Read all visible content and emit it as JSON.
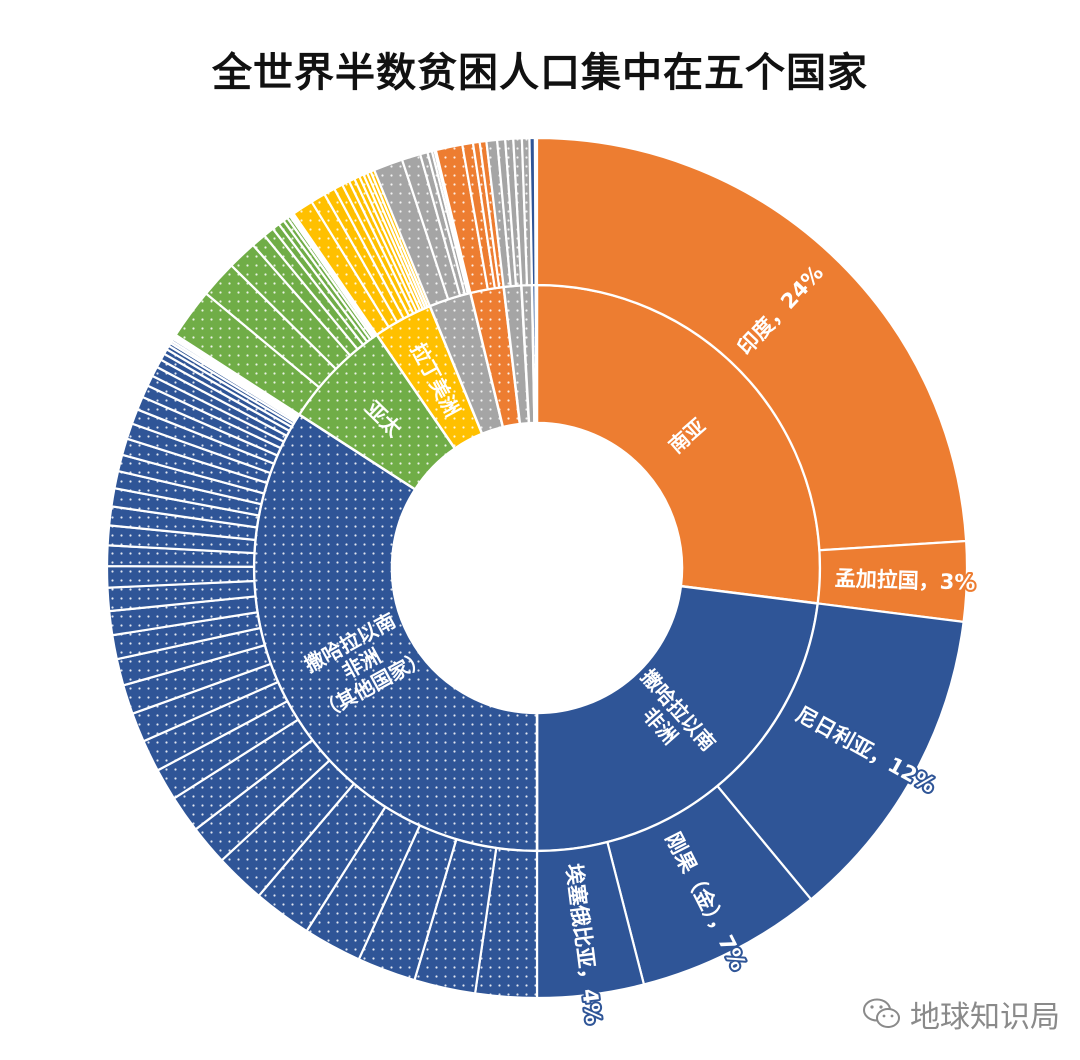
{
  "chart_data": {
    "type": "pie",
    "variant": "sunburst",
    "title": "全世界半数贫困人口集中在五个国家",
    "unit": "%",
    "groups": [
      {
        "name_lines": [
          "南亚"
        ],
        "color": "#ED7D31",
        "pattern": "solid",
        "children": [
          {
            "label": "印度，24%",
            "value": 24
          },
          {
            "label": "孟加拉国，3%",
            "value": 3
          }
        ]
      },
      {
        "name_lines": [
          "撒哈拉以南",
          "非洲"
        ],
        "color": "#2F5597",
        "pattern": "solid",
        "children": [
          {
            "label": "尼日利亚，12%",
            "value": 12
          },
          {
            "label": "刚果（金），7%",
            "value": 7
          },
          {
            "label": "埃塞俄比亚，4%",
            "value": 4
          }
        ]
      },
      {
        "name_lines": [
          "撒哈拉以南",
          "非洲",
          "（其他国家）"
        ],
        "color": "#2F5597",
        "pattern": "dotted",
        "children": [
          {
            "value": 2.3
          },
          {
            "value": 2.3
          },
          {
            "value": 2.2
          },
          {
            "value": 2.2
          },
          {
            "value": 2.2
          },
          {
            "value": 1.9
          },
          {
            "value": 1.5
          },
          {
            "value": 1.4
          },
          {
            "value": 1.2
          },
          {
            "value": 1.2
          },
          {
            "value": 1.1
          },
          {
            "value": 1.1
          },
          {
            "value": 1.0
          },
          {
            "value": 0.9
          },
          {
            "value": 0.9
          },
          {
            "value": 0.87
          },
          {
            "value": 0.8
          },
          {
            "value": 0.77
          },
          {
            "value": 0.74
          },
          {
            "value": 0.71
          },
          {
            "value": 0.68
          },
          {
            "value": 0.65
          },
          {
            "value": 0.62
          },
          {
            "value": 0.62
          },
          {
            "value": 0.59
          },
          {
            "value": 0.56
          },
          {
            "value": 0.5
          },
          {
            "value": 0.46
          },
          {
            "value": 0.4
          },
          {
            "value": 0.37
          },
          {
            "value": 0.31
          },
          {
            "value": 0.25
          },
          {
            "value": 0.19
          },
          {
            "value": 0.15
          },
          {
            "value": 0.12
          },
          {
            "value": 0.09
          },
          {
            "value": 0.09
          },
          {
            "value": 0.06
          },
          {
            "value": 0.06
          },
          {
            "value": 0.06
          }
        ]
      },
      {
        "name_lines": [
          "亚太"
        ],
        "color": "#70AD47",
        "pattern": "dotted",
        "children": [
          {
            "value": 1.9
          },
          {
            "value": 1.4
          },
          {
            "value": 1.1
          },
          {
            "value": 0.55
          },
          {
            "value": 0.4
          },
          {
            "value": 0.28
          },
          {
            "value": 0.22
          },
          {
            "value": 0.17
          },
          {
            "value": 0.12
          },
          {
            "value": 0.08
          },
          {
            "value": 0.08
          }
        ]
      },
      {
        "name_lines": [
          "拉丁美洲"
        ],
        "color": "#FFC000",
        "pattern": "dotted",
        "children": [
          {
            "value": 0.8
          },
          {
            "value": 0.55
          },
          {
            "value": 0.42
          },
          {
            "value": 0.33
          },
          {
            "value": 0.28
          },
          {
            "value": 0.22
          },
          {
            "value": 0.2
          },
          {
            "value": 0.17
          },
          {
            "value": 0.15
          },
          {
            "value": 0.14
          },
          {
            "value": 0.14
          }
        ]
      },
      {
        "color": "#A5A5A5",
        "pattern": "dotted",
        "children": [
          {
            "value": 1.1
          },
          {
            "value": 0.7
          },
          {
            "value": 0.28
          },
          {
            "value": 0.17
          },
          {
            "value": 0.1
          },
          {
            "value": 0.05
          }
        ]
      },
      {
        "color": "#ED7D31",
        "pattern": "dotted",
        "children": [
          {
            "value": 1.0
          },
          {
            "value": 0.4
          },
          {
            "value": 0.25
          },
          {
            "value": 0.25
          }
        ]
      },
      {
        "color": "#A5A5A5",
        "pattern": "dotted",
        "children": [
          {
            "value": 0.4
          },
          {
            "value": 0.3
          },
          {
            "value": 0.3
          }
        ]
      },
      {
        "color": "#A5A5A5",
        "pattern": "dotted",
        "children": [
          {
            "value": 0.32
          },
          {
            "value": 0.28
          }
        ]
      },
      {
        "color": "#2F5597",
        "pattern": "dotted",
        "children": [
          {
            "value": 0.2
          }
        ]
      }
    ]
  },
  "watermark": {
    "text": "地球知识局",
    "icon": "wechat-icon"
  }
}
